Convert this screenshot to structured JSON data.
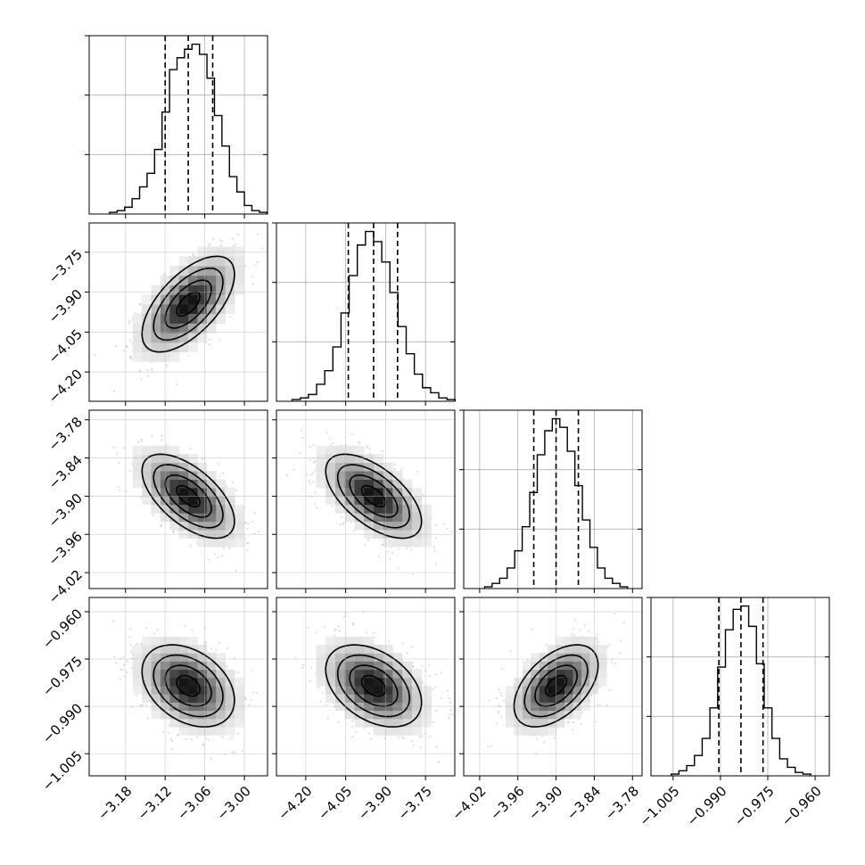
{
  "chart_data": {
    "type": "corner",
    "parameters": [
      {
        "index": 0,
        "label": "",
        "range": [
          -3.235,
          -2.965
        ],
        "mean": -3.085,
        "std": 0.035,
        "quantiles": [
          -3.12,
          -3.085,
          -3.048
        ],
        "ticks": [
          -3.18,
          -3.12,
          -3.06,
          -3.0
        ],
        "tick_labels": [
          "−3.18",
          "−3.12",
          "−3.06",
          "−3.00"
        ]
      },
      {
        "index": 1,
        "label": "",
        "range": [
          -4.31,
          -3.64
        ],
        "mean": -3.945,
        "std": 0.09,
        "quantiles": [
          -4.04,
          -3.945,
          -3.855
        ],
        "ticks": [
          -4.2,
          -4.05,
          -3.9,
          -3.75
        ],
        "tick_labels": [
          "−4.20",
          "−4.05",
          "−3.90",
          "−3.75"
        ]
      },
      {
        "index": 2,
        "label": "",
        "range": [
          -4.045,
          -3.765
        ],
        "mean": -3.9,
        "std": 0.033,
        "quantiles": [
          -3.935,
          -3.9,
          -3.865
        ],
        "ticks": [
          -4.02,
          -3.96,
          -3.9,
          -3.84,
          -3.78
        ],
        "tick_labels": [
          "−4.02",
          "−3.96",
          "−3.90",
          "−3.84",
          "−3.78"
        ]
      },
      {
        "index": 3,
        "label": "",
        "range": [
          -1.012,
          -0.9555
        ],
        "mean": -0.9835,
        "std": 0.0065,
        "quantiles": [
          -0.9905,
          -0.9835,
          -0.9765
        ],
        "ticks": [
          -1.005,
          -0.99,
          -0.975,
          -0.96
        ],
        "tick_labels": [
          "−1.005",
          "−0.990",
          "−0.975",
          "−0.960"
        ]
      }
    ],
    "histogram_counts": [
      [
        1,
        2,
        4,
        9,
        16,
        24,
        38,
        60,
        85,
        92,
        97,
        100,
        94,
        80,
        58,
        40,
        22,
        13,
        5,
        2,
        1
      ],
      [
        1,
        2,
        4,
        10,
        18,
        32,
        52,
        74,
        92,
        100,
        94,
        82,
        64,
        44,
        28,
        16,
        8,
        5,
        2,
        1
      ],
      [
        1,
        3,
        6,
        12,
        22,
        36,
        56,
        78,
        92,
        99,
        94,
        80,
        60,
        40,
        24,
        12,
        6,
        3,
        1
      ],
      [
        1,
        3,
        6,
        12,
        22,
        40,
        64,
        86,
        98,
        100,
        88,
        66,
        40,
        22,
        10,
        5,
        2,
        1
      ]
    ],
    "correlations": [
      [
        1.0,
        0.62,
        -0.6,
        -0.35
      ],
      [
        0.62,
        1.0,
        -0.6,
        -0.4
      ],
      [
        -0.6,
        -0.6,
        1.0,
        0.5
      ],
      [
        -0.35,
        -0.4,
        0.5,
        1.0
      ]
    ],
    "contour_levels_sigma": [
      0.5,
      1.0,
      1.5,
      2.0
    ],
    "quantile_style": "dashed",
    "grid": true,
    "title": "",
    "xlabel": "",
    "ylabel": ""
  }
}
